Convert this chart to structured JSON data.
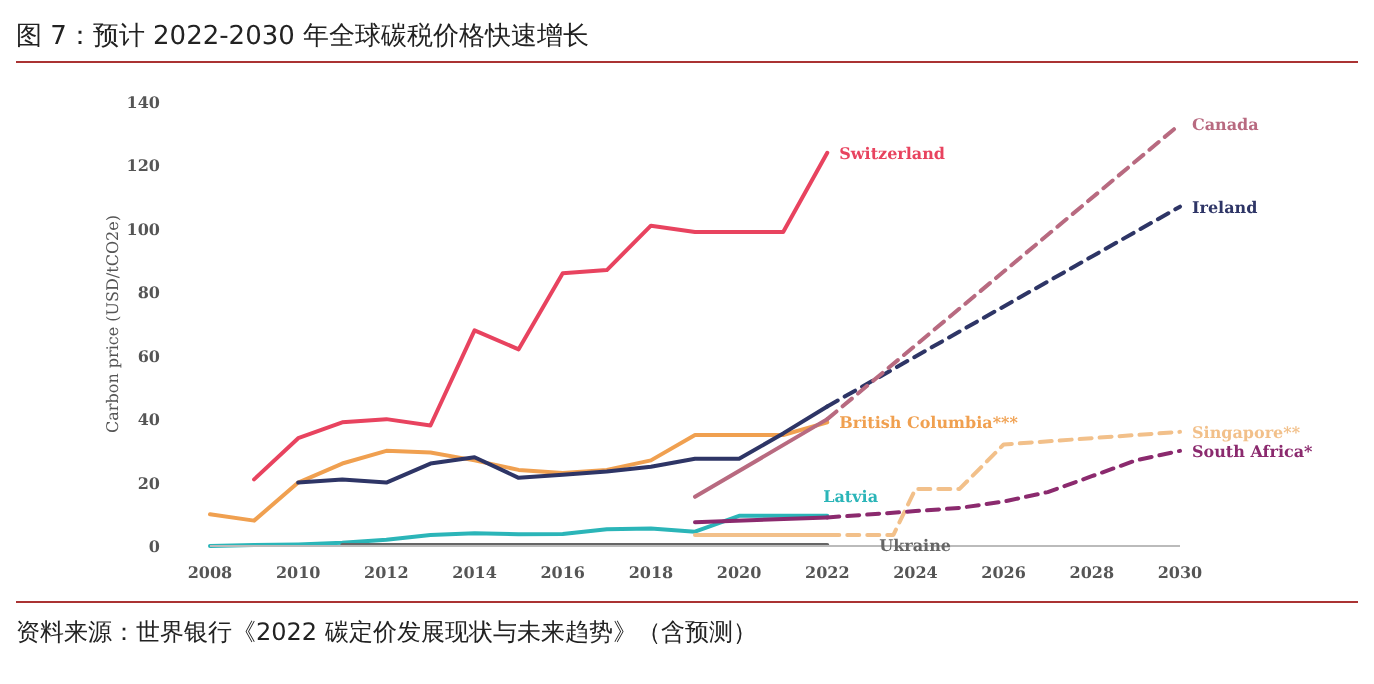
{
  "chart_data": {
    "type": "line",
    "title": "图 7：预计 2022-2030 年全球碳税价格快速增长",
    "ylabel": "Carbon price (USD/tCO2e)",
    "annotations": [
      "资料来源：世界银行《2022 碳定价发展现状与未来趋势》（含预测）"
    ],
    "xlim": [
      2008,
      2030
    ],
    "xticks": [
      2008,
      2010,
      2012,
      2014,
      2016,
      2018,
      2020,
      2022,
      2024,
      2026,
      2028,
      2030
    ],
    "ylim": [
      0,
      140
    ],
    "yticks": [
      0,
      20,
      40,
      60,
      80,
      100,
      120,
      140
    ],
    "grid": false,
    "series": [
      {
        "name": "Switzerland",
        "color": "#e8435f",
        "line_style": "solid",
        "x": [
          2009,
          2010,
          2011,
          2012,
          2013,
          2014,
          2015,
          2016,
          2017,
          2018,
          2019,
          2020,
          2021,
          2022
        ],
        "values": [
          21,
          34,
          39,
          40,
          38,
          68,
          62,
          86,
          87,
          101,
          99,
          99,
          99,
          124
        ]
      },
      {
        "name": "British Columbia***",
        "color": "#f0a050",
        "line_style": "solid",
        "x": [
          2008,
          2009,
          2010,
          2011,
          2012,
          2013,
          2014,
          2015,
          2016,
          2017,
          2018,
          2019,
          2020,
          2021,
          2022
        ],
        "values": [
          10,
          8,
          20,
          26,
          30,
          29.5,
          27,
          24,
          23,
          24,
          27,
          35,
          35,
          35,
          39
        ]
      },
      {
        "color": "#2e3566",
        "line_style": "solid",
        "x": [
          2010,
          2011,
          2012,
          2013,
          2014,
          2015,
          2016,
          2017,
          2018,
          2019,
          2020,
          2021,
          2022
        ],
        "values": [
          20,
          21,
          20,
          26,
          28,
          21.5,
          22.5,
          23.5,
          25,
          27.5,
          27.5,
          35.5,
          44
        ]
      },
      {
        "name": "Ireland",
        "color": "#2e3566",
        "line_style": "dashed",
        "x": [
          2022,
          2030
        ],
        "values": [
          44,
          107
        ]
      },
      {
        "color": "#b86a80",
        "line_style": "solid",
        "x": [
          2019,
          2022
        ],
        "values": [
          15.5,
          40
        ]
      },
      {
        "name": "Canada",
        "color": "#b86a80",
        "line_style": "dashed",
        "x": [
          2022,
          2030
        ],
        "values": [
          40,
          133
        ]
      },
      {
        "name": "Latvia",
        "color": "#2bb5b8",
        "line_style": "solid",
        "x": [
          2008,
          2009,
          2010,
          2011,
          2012,
          2013,
          2014,
          2015,
          2016,
          2017,
          2018,
          2019,
          2020,
          2021,
          2022
        ],
        "values": [
          0,
          0.3,
          0.5,
          1,
          2,
          3.5,
          4,
          3.7,
          3.8,
          5.3,
          5.5,
          4.5,
          9.5,
          9.5,
          9.5
        ]
      },
      {
        "name": "Ukraine",
        "color": "#666666",
        "line_style": "solid",
        "x": [
          2011,
          2022
        ],
        "values": [
          0.3,
          0.3
        ]
      },
      {
        "color": "#f2c08a",
        "line_style": "solid",
        "x": [
          2019,
          2022
        ],
        "values": [
          3.5,
          3.5
        ]
      },
      {
        "name": "Singapore**",
        "color": "#f2c08a",
        "line_style": "dashed",
        "x": [
          2022,
          2023.5,
          2024,
          2025,
          2026,
          2030
        ],
        "values": [
          3.5,
          3.5,
          18,
          18,
          32,
          36
        ]
      },
      {
        "color": "#8b2a6e",
        "line_style": "solid",
        "x": [
          2019,
          2022
        ],
        "values": [
          7.5,
          9
        ]
      },
      {
        "name": "South Africa*",
        "color": "#8b2a6e",
        "line_style": "dashed",
        "x": [
          2022,
          2023,
          2024,
          2025,
          2026,
          2027,
          2028,
          2029,
          2030
        ],
        "values": [
          9,
          10,
          11,
          12,
          14,
          17,
          22,
          27,
          30
        ]
      }
    ]
  }
}
